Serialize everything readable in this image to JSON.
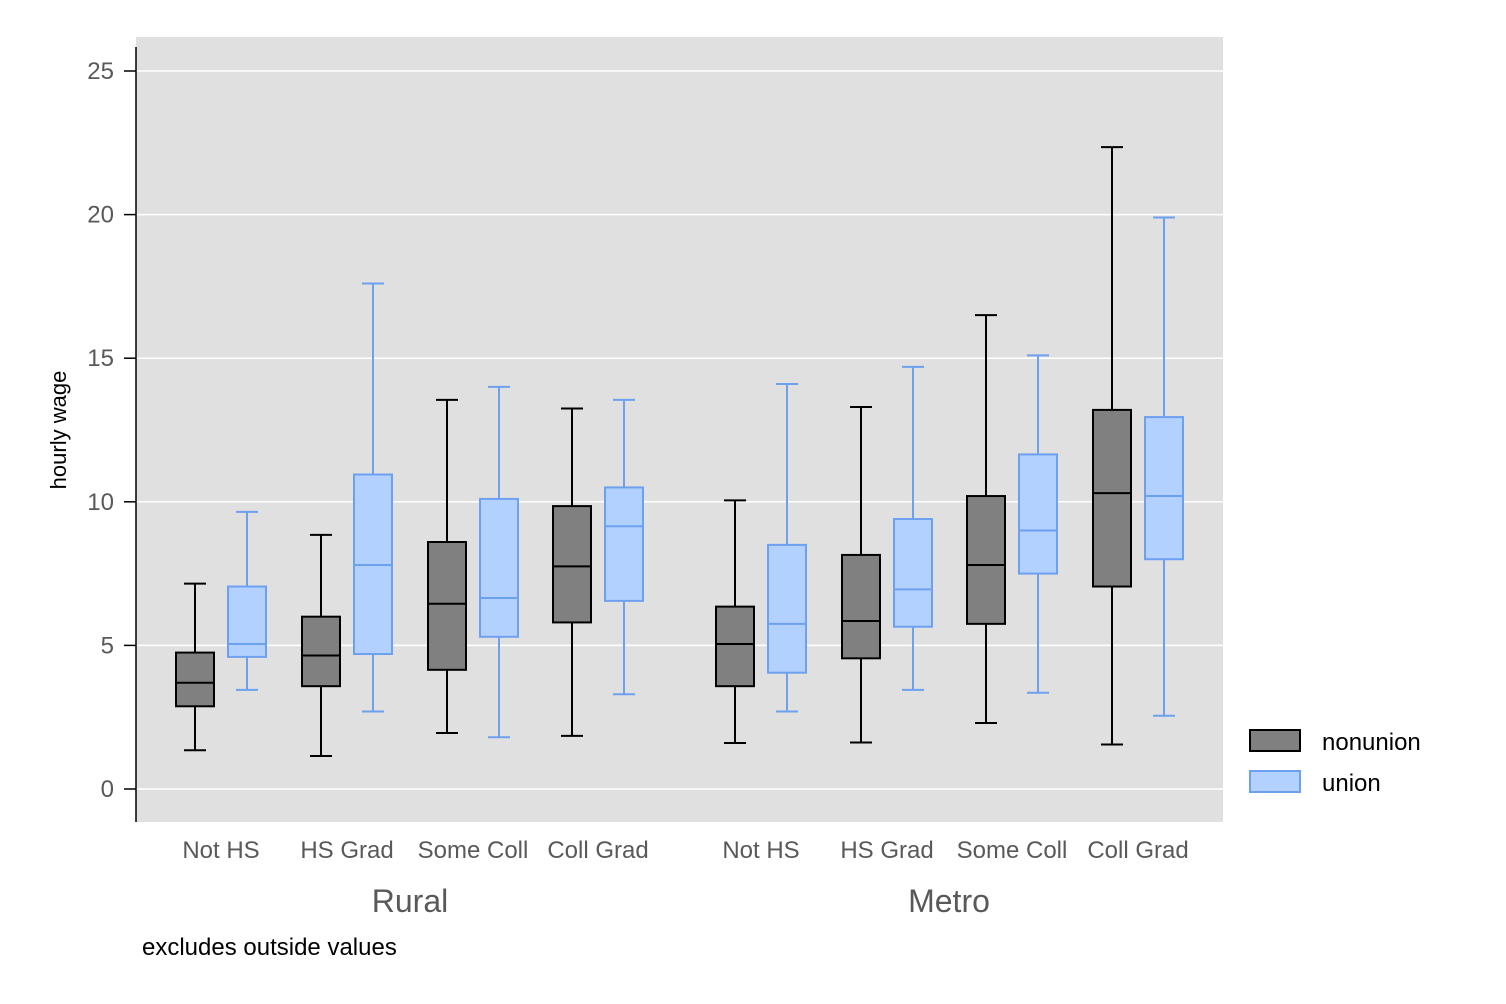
{
  "chart_data": {
    "type": "box",
    "title": "",
    "xlabel": "",
    "ylabel": "hourly wage",
    "ylim": [
      0,
      25
    ],
    "yticks": [
      0,
      5,
      10,
      15,
      20,
      25
    ],
    "grid": true,
    "legend_position": "right",
    "note": "excludes outside values",
    "colors": {
      "nonunion": "#808080",
      "union": "#b3d1ff",
      "nonunion_line": "#000000",
      "union_line": "#6ea0f0",
      "plot_bg": "#e0e0e0",
      "grid": "#ffffff"
    },
    "series": [
      {
        "name": "nonunion"
      },
      {
        "name": "union"
      }
    ],
    "groups": [
      {
        "label": "Rural",
        "categories": [
          {
            "label": "Not HS",
            "nonunion": {
              "min": 1.35,
              "q1": 2.88,
              "median": 3.7,
              "q3": 4.75,
              "max": 7.15
            },
            "union": {
              "min": 3.45,
              "q1": 4.6,
              "median": 5.05,
              "q3": 7.05,
              "max": 9.65
            }
          },
          {
            "label": "HS Grad",
            "nonunion": {
              "min": 1.15,
              "q1": 3.58,
              "median": 4.65,
              "q3": 6.0,
              "max": 8.85
            },
            "union": {
              "min": 2.7,
              "q1": 4.7,
              "median": 7.8,
              "q3": 10.95,
              "max": 17.6
            }
          },
          {
            "label": "Some Coll",
            "nonunion": {
              "min": 1.95,
              "q1": 4.15,
              "median": 6.45,
              "q3": 8.6,
              "max": 13.55
            },
            "union": {
              "min": 1.8,
              "q1": 5.3,
              "median": 6.65,
              "q3": 10.1,
              "max": 14.0
            }
          },
          {
            "label": "Coll Grad",
            "nonunion": {
              "min": 1.85,
              "q1": 5.8,
              "median": 7.75,
              "q3": 9.85,
              "max": 13.25
            },
            "union": {
              "min": 3.3,
              "q1": 6.55,
              "median": 9.15,
              "q3": 10.5,
              "max": 13.55
            }
          }
        ]
      },
      {
        "label": "Metro",
        "categories": [
          {
            "label": "Not HS",
            "nonunion": {
              "min": 1.6,
              "q1": 3.58,
              "median": 5.05,
              "q3": 6.35,
              "max": 10.05
            },
            "union": {
              "min": 2.7,
              "q1": 4.05,
              "median": 5.75,
              "q3": 8.5,
              "max": 14.1
            }
          },
          {
            "label": "HS Grad",
            "nonunion": {
              "min": 1.62,
              "q1": 4.55,
              "median": 5.85,
              "q3": 8.15,
              "max": 13.3
            },
            "union": {
              "min": 3.45,
              "q1": 5.65,
              "median": 6.95,
              "q3": 9.4,
              "max": 14.7
            }
          },
          {
            "label": "Some Coll",
            "nonunion": {
              "min": 2.3,
              "q1": 5.75,
              "median": 7.8,
              "q3": 10.2,
              "max": 16.5
            },
            "union": {
              "min": 3.35,
              "q1": 7.5,
              "median": 9.0,
              "q3": 11.65,
              "max": 15.1
            }
          },
          {
            "label": "Coll Grad",
            "nonunion": {
              "min": 1.55,
              "q1": 7.05,
              "median": 10.3,
              "q3": 13.2,
              "max": 22.35
            },
            "union": {
              "min": 2.55,
              "q1": 8.0,
              "median": 10.2,
              "q3": 12.95,
              "max": 19.9
            }
          }
        ]
      }
    ]
  }
}
